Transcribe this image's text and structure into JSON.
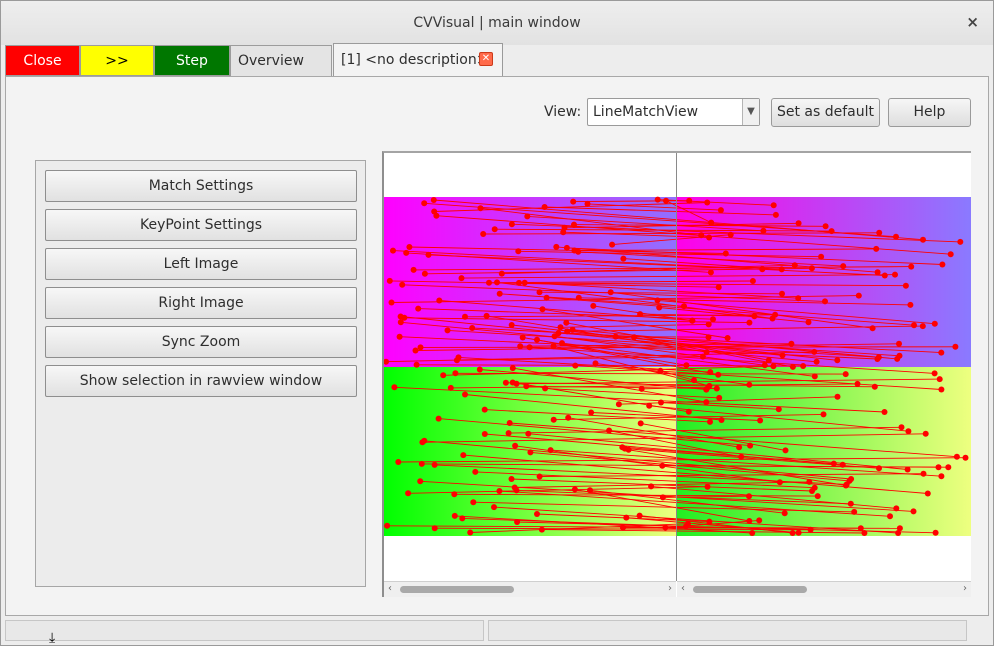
{
  "window": {
    "title": "CVVisual | main window",
    "close_glyph": "×"
  },
  "tabs": [
    {
      "label": "Close",
      "color": "#ff0000"
    },
    {
      "label": ">>",
      "color": "#ffff00"
    },
    {
      "label": "Step",
      "color": "#007700"
    },
    {
      "label": "Overview"
    },
    {
      "label": "[1] <no description>",
      "active": true,
      "close_icon": "close-icon"
    }
  ],
  "toolbar": {
    "view_label": "View:",
    "view_value": "LineMatchView",
    "set_default_label": "Set as default",
    "help_label": "Help"
  },
  "settings": {
    "buttons": [
      "Match Settings",
      "KeyPoint Settings",
      "Left Image",
      "Right Image",
      "Sync Zoom",
      "Show selection in rawview window"
    ]
  },
  "viewer": {
    "match_color": "#ff0000",
    "left_gradient": {
      "top_left": "#ff00ff",
      "top_right": "#8080ff",
      "bottom_left": "#00ff00",
      "bottom_right": "#f0ff80"
    },
    "right_gradient": {
      "top_left": "#ff00ff",
      "top_right": "#8080ff",
      "bottom_left": "#00ff00",
      "bottom_right": "#f0ff80"
    }
  },
  "status_icon": "cursor-down-arrow-icon"
}
